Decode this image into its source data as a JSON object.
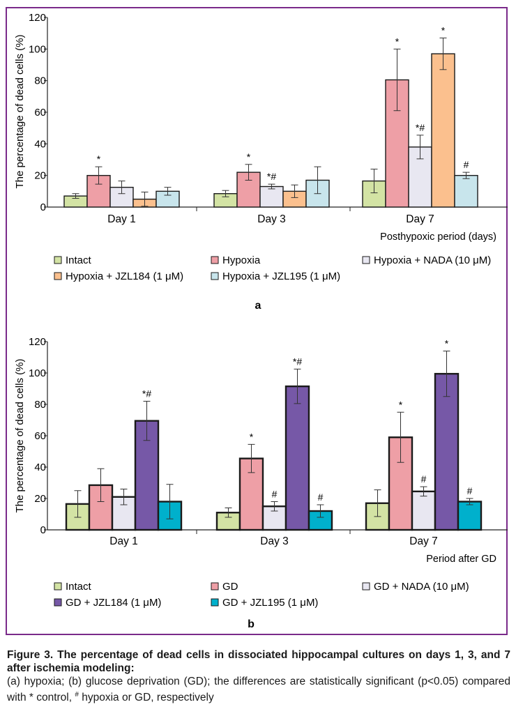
{
  "figure": {
    "caption_title": "Figure 3. The percentage of dead cells in dissociated hippocampal cultures on days 1, 3, and 7 after ischemia modeling:",
    "caption_text_1": "(a) hypoxia; (b) glucose deprivation (GD); the differences are statistically significant (p<0.05) compared with * control,",
    "caption_hash": "#",
    "caption_text_2": " hypoxia or GD, respectively"
  },
  "colors": {
    "intact": "#d3e3a4",
    "hypoxia": "#ee9fa6",
    "nada": "#e8e7f1",
    "jzl184_a": "#fbc08e",
    "jzl195_a": "#c8e5ec",
    "jzl184_b": "#7658a7",
    "jzl195_b": "#00b0cc",
    "frame": "#7a2a8a"
  },
  "chart_data": [
    {
      "panel_label": "a",
      "type": "bar",
      "ylabel": "The percentage of dead cells (%)",
      "xlabel": "Posthypoxic period (days)",
      "categories": [
        "Day 1",
        "Day 3",
        "Day 7"
      ],
      "ylim": [
        0,
        120
      ],
      "yticks": [
        "0",
        "20",
        "40",
        "60",
        "80",
        "100",
        "120"
      ],
      "grid": false,
      "legend_position": "bottom",
      "series": [
        {
          "name": "Intact",
          "color_key": "intact",
          "values": [
            7,
            8.5,
            16.5
          ],
          "errors": [
            1.5,
            2,
            7.5
          ],
          "marks": [
            "",
            "",
            ""
          ]
        },
        {
          "name": "Hypoxia",
          "color_key": "hypoxia",
          "values": [
            20,
            22,
            80.5
          ],
          "errors": [
            5.5,
            5,
            19.5
          ],
          "marks": [
            "*",
            "*",
            "*"
          ]
        },
        {
          "name": "Hypoxia + NADA (10 μM)",
          "color_key": "nada",
          "values": [
            12.5,
            13,
            38
          ],
          "errors": [
            4,
            1.5,
            7.5
          ],
          "marks": [
            "",
            "*#",
            "*#"
          ]
        },
        {
          "name": "Hypoxia + JZL184 (1 μM)",
          "color_key": "jzl184_a",
          "values": [
            5,
            10,
            97
          ],
          "errors": [
            4.5,
            4,
            10
          ],
          "marks": [
            "",
            "",
            "*"
          ]
        },
        {
          "name": "Hypoxia + JZL195 (1 μM)",
          "color_key": "jzl195_a",
          "values": [
            10,
            17,
            20
          ],
          "errors": [
            2.5,
            8.5,
            2
          ],
          "marks": [
            "",
            "",
            "#"
          ]
        }
      ]
    },
    {
      "panel_label": "b",
      "type": "bar",
      "ylabel": "The percentage of dead cells (%)",
      "xlabel": "Period after GD",
      "categories": [
        "Day 1",
        "Day 3",
        "Day 7"
      ],
      "ylim": [
        0,
        120
      ],
      "yticks": [
        "0",
        "20",
        "40",
        "60",
        "80",
        "100",
        "120"
      ],
      "grid": false,
      "legend_position": "bottom",
      "series": [
        {
          "name": "Intact",
          "color_key": "intact",
          "values": [
            16.5,
            11,
            17
          ],
          "errors": [
            8.5,
            3,
            8.5
          ],
          "marks": [
            "",
            "",
            ""
          ]
        },
        {
          "name": "GD",
          "color_key": "hypoxia",
          "values": [
            28.5,
            45.5,
            59
          ],
          "errors": [
            10.5,
            9,
            16
          ],
          "marks": [
            "",
            "*",
            "*"
          ]
        },
        {
          "name": "GD + NADA (10 μM)",
          "color_key": "nada",
          "values": [
            21,
            15,
            24.5
          ],
          "errors": [
            5,
            3,
            3
          ],
          "marks": [
            "",
            "#",
            "#"
          ]
        },
        {
          "name": "GD + JZL184 (1 μM)",
          "color_key": "jzl184_b",
          "values": [
            69.5,
            91.5,
            99.5
          ],
          "errors": [
            12.5,
            11,
            14.5
          ],
          "marks": [
            "*#",
            "*#",
            "*"
          ]
        },
        {
          "name": "GD + JZL195 (1 μM)",
          "color_key": "jzl195_b",
          "values": [
            18,
            12,
            18
          ],
          "errors": [
            11,
            4,
            2
          ],
          "marks": [
            "",
            "#",
            "#"
          ]
        }
      ]
    }
  ]
}
